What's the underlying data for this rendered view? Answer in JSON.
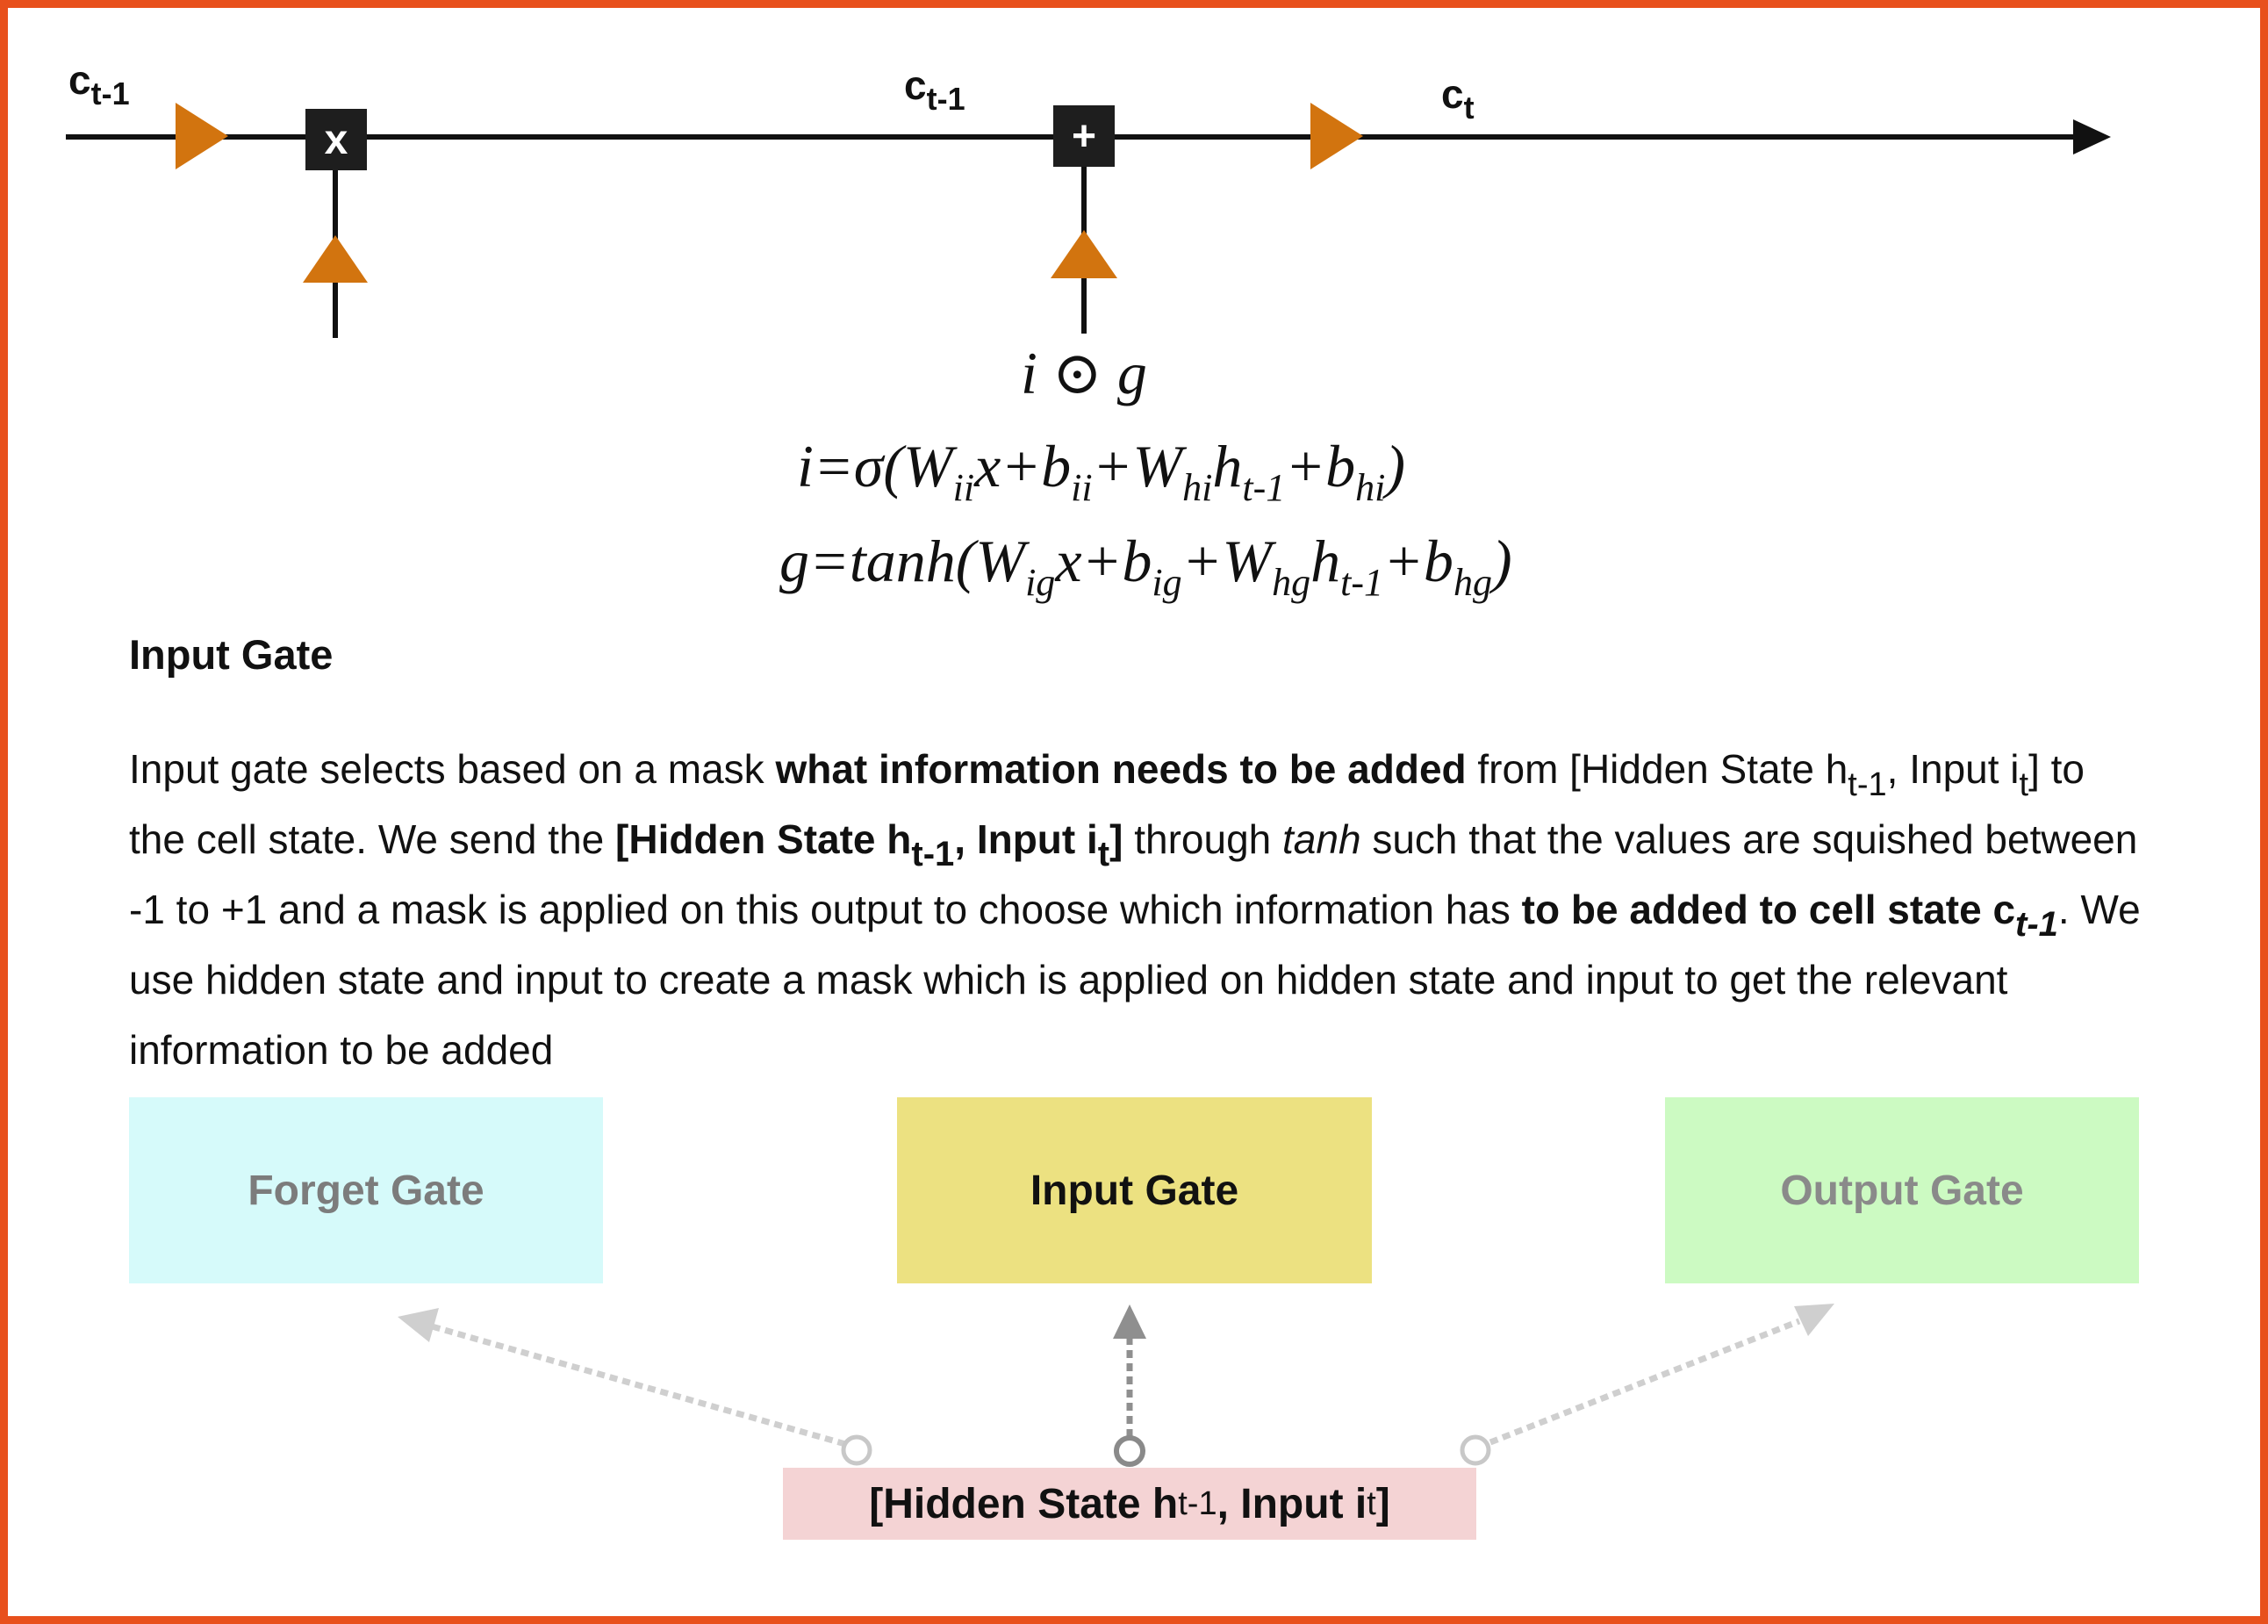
{
  "cell_line": {
    "label_left": {
      "main": "c",
      "sub": "t-1"
    },
    "label_middle": {
      "main": "c",
      "sub": "t-1"
    },
    "label_right": {
      "main": "c",
      "sub": "t"
    },
    "multiply_op": "x",
    "add_op": "+",
    "line_color": "#111111",
    "arrow_color": "#d2740f"
  },
  "equations": {
    "product": "i ⊙ g",
    "i_eq": {
      "p1": "i=σ(W",
      "s1": "ii",
      "p2": "x+b",
      "s2": "ii",
      "p3": "+W",
      "s3": "hi",
      "p4": "h",
      "s4": "t-1",
      "p5": "+b",
      "s5": "hi",
      "p6": ")"
    },
    "g_eq": {
      "p1": "g=tanh(W",
      "s1": "ig",
      "p2": "x+b",
      "s2": "ig",
      "p3": "+W",
      "s3": "hg",
      "p4": "h",
      "s4": "t-1",
      "p5": "+b",
      "s5": "hg",
      "p6": ")"
    }
  },
  "section_title": "Input Gate",
  "description": {
    "t1": "Input gate selects based on a mask ",
    "b1": "what information needs to be added",
    "t2": " from [Hidden State h",
    "s1": "t-1",
    "t3": ", Input i",
    "s2": "t",
    "t4": "] to the cell state. We send the ",
    "b2": "[Hidden State h",
    "bs1": "t-1",
    "b3": ", Input i",
    "bs2": "t",
    "b4": "]",
    "t5": " through ",
    "i1": "tanh",
    "t6": " such that the values are squished between -1 to +1 and a mask is applied on this output to choose which information has ",
    "b5": "to be added to cell state c",
    "bs3": "t-1",
    "t7": ". We use hidden state and input to create a mask which is applied on hidden state and input to get the relevant information to be added"
  },
  "gates": {
    "forget": {
      "label": "Forget Gate",
      "color": "#d6fafa"
    },
    "input": {
      "label": "Input Gate",
      "color": "#ece181"
    },
    "output": {
      "label": "Output Gate",
      "color": "#ccfac2"
    }
  },
  "inputs_box": {
    "p1": "[Hidden State h",
    "s1": "t-1",
    "p2": ", Input i",
    "s2": "t",
    "p3": "]",
    "color": "#f4d3d4"
  },
  "frame_color": "#e8501c"
}
